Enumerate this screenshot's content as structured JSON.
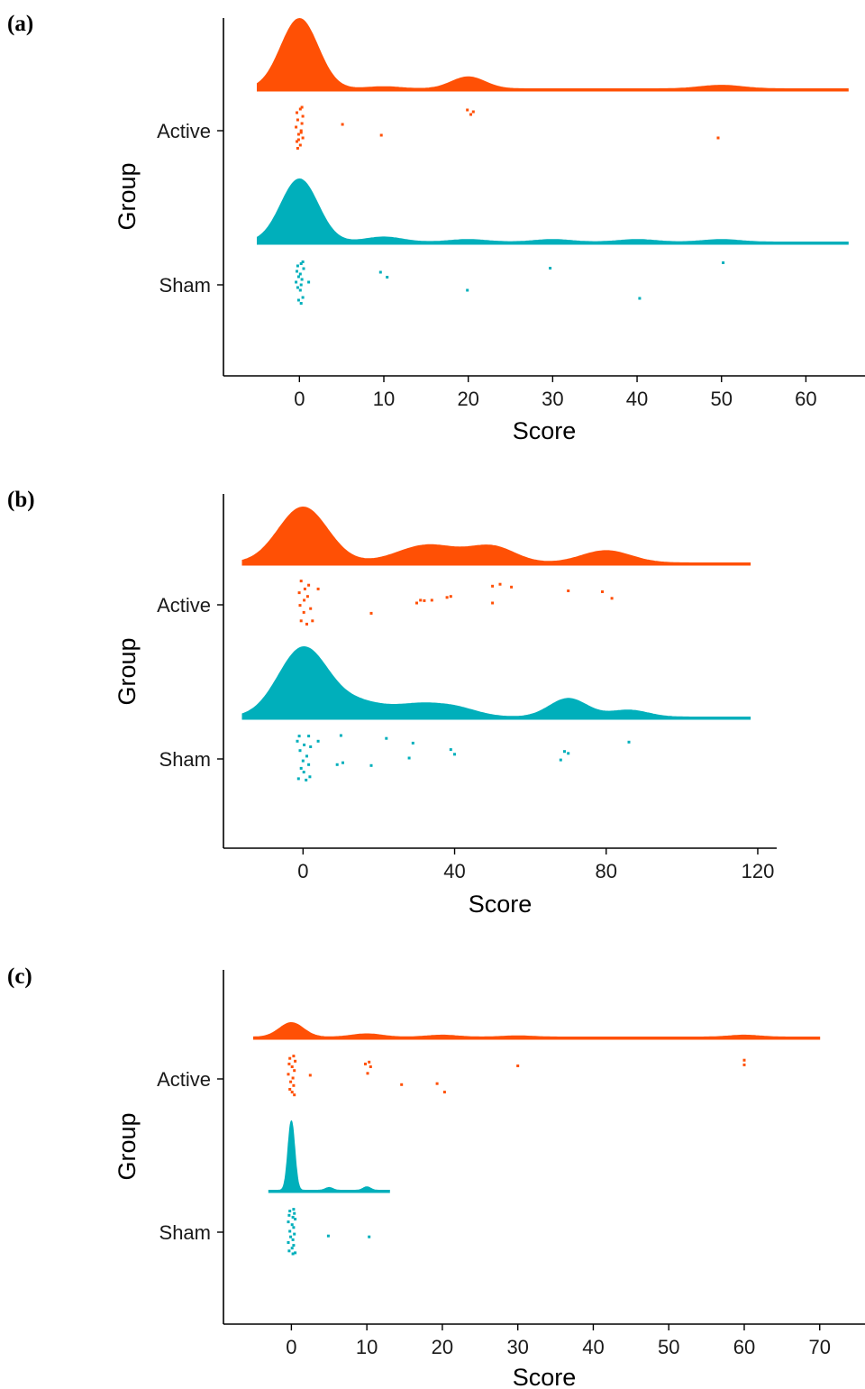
{
  "colors": {
    "Active": "#FF5005",
    "Sham": "#00AFBB"
  },
  "chart_data": [
    {
      "type": "raincloud",
      "panel_label": "(a)",
      "xlabel": "Score",
      "ylabel": "Group",
      "groups": [
        "Active",
        "Sham"
      ],
      "xlim": [
        -9,
        67
      ],
      "xticks": [
        0,
        10,
        20,
        30,
        40,
        50,
        60
      ],
      "density_range": [
        -5,
        65
      ],
      "series": [
        {
          "name": "Active",
          "density_peaks": [
            {
              "center": 0,
              "sd": 2.2,
              "height": 1.0
            },
            {
              "center": 10,
              "sd": 2.0,
              "height": 0.03
            },
            {
              "center": 20,
              "sd": 2.0,
              "height": 0.17
            },
            {
              "center": 50,
              "sd": 2.5,
              "height": 0.05
            }
          ],
          "points": [
            [
              0.1,
              0.92
            ],
            [
              -0.3,
              0.84
            ],
            [
              0.4,
              0.76
            ],
            [
              -0.2,
              0.68
            ],
            [
              0.3,
              0.6
            ],
            [
              -0.4,
              0.52
            ],
            [
              0.2,
              0.44
            ],
            [
              -0.1,
              0.36
            ],
            [
              0.4,
              0.28
            ],
            [
              -0.3,
              0.2
            ],
            [
              0.1,
              0.12
            ],
            [
              -0.2,
              0.05
            ],
            [
              0.3,
              0.96
            ],
            [
              -0.1,
              0.24
            ],
            [
              0.2,
              0.4
            ],
            [
              5.1,
              0.58
            ],
            [
              9.7,
              0.34
            ],
            [
              19.9,
              0.9
            ],
            [
              20.3,
              0.8
            ],
            [
              20.6,
              0.86
            ],
            [
              49.6,
              0.28
            ]
          ]
        },
        {
          "name": "Sham",
          "density_peaks": [
            {
              "center": 0,
              "sd": 2.2,
              "height": 1.0
            },
            {
              "center": 10,
              "sd": 2.2,
              "height": 0.08
            },
            {
              "center": 20,
              "sd": 2.2,
              "height": 0.04
            },
            {
              "center": 30,
              "sd": 2.2,
              "height": 0.04
            },
            {
              "center": 40,
              "sd": 2.2,
              "height": 0.04
            },
            {
              "center": 50,
              "sd": 2.2,
              "height": 0.04
            }
          ],
          "points": [
            [
              0.4,
              0.97
            ],
            [
              0.2,
              0.93
            ],
            [
              -0.2,
              0.88
            ],
            [
              0.5,
              0.82
            ],
            [
              -0.3,
              0.76
            ],
            [
              0.1,
              0.7
            ],
            [
              -0.1,
              0.64
            ],
            [
              0.3,
              0.58
            ],
            [
              -0.4,
              0.52
            ],
            [
              0.2,
              0.46
            ],
            [
              -0.2,
              0.4
            ],
            [
              0.1,
              0.34
            ],
            [
              0.4,
              0.18
            ],
            [
              -0.1,
              0.12
            ],
            [
              0.2,
              0.05
            ],
            [
              1.1,
              0.52
            ],
            [
              9.6,
              0.74
            ],
            [
              10.4,
              0.63
            ],
            [
              19.9,
              0.34
            ],
            [
              29.7,
              0.83
            ],
            [
              40.3,
              0.16
            ],
            [
              50.2,
              0.95
            ]
          ]
        }
      ]
    },
    {
      "type": "raincloud",
      "panel_label": "(b)",
      "xlabel": "Score",
      "ylabel": "Group",
      "groups": [
        "Active",
        "Sham"
      ],
      "xlim": [
        -21,
        125
      ],
      "xticks": [
        0,
        40,
        80,
        120
      ],
      "density_range": [
        -16,
        118
      ],
      "series": [
        {
          "name": "Active",
          "density_peaks": [
            {
              "center": 0,
              "sd": 6.5,
              "height": 1.0
            },
            {
              "center": 33,
              "sd": 8,
              "height": 0.32
            },
            {
              "center": 50,
              "sd": 6,
              "height": 0.28
            },
            {
              "center": 80,
              "sd": 6.5,
              "height": 0.22
            }
          ],
          "points": [
            [
              -0.5,
              0.97
            ],
            [
              1.5,
              0.88
            ],
            [
              0.5,
              0.8
            ],
            [
              -1,
              0.72
            ],
            [
              1.2,
              0.64
            ],
            [
              0.3,
              0.56
            ],
            [
              -0.8,
              0.45
            ],
            [
              2,
              0.38
            ],
            [
              0.2,
              0.3
            ],
            [
              -0.5,
              0.12
            ],
            [
              1,
              0.05
            ],
            [
              2.5,
              0.12
            ],
            [
              4,
              0.8
            ],
            [
              18,
              0.28
            ],
            [
              30,
              0.5
            ],
            [
              31,
              0.56
            ],
            [
              32,
              0.55
            ],
            [
              34,
              0.56
            ],
            [
              38,
              0.62
            ],
            [
              39,
              0.64
            ],
            [
              50,
              0.5
            ],
            [
              50,
              0.86
            ],
            [
              52,
              0.9
            ],
            [
              55,
              0.84
            ],
            [
              70,
              0.76
            ],
            [
              79,
              0.74
            ],
            [
              81.5,
              0.6
            ]
          ]
        },
        {
          "name": "Sham",
          "density_peaks": [
            {
              "center": 0,
              "sd": 6.5,
              "height": 1.0
            },
            {
              "center": 15,
              "sd": 7,
              "height": 0.2
            },
            {
              "center": 30,
              "sd": 6,
              "height": 0.15
            },
            {
              "center": 40,
              "sd": 6,
              "height": 0.13
            },
            {
              "center": 70,
              "sd": 5,
              "height": 0.27
            },
            {
              "center": 86,
              "sd": 5,
              "height": 0.1
            }
          ],
          "points": [
            [
              -1,
              0.97
            ],
            [
              1.5,
              0.97
            ],
            [
              -1.5,
              0.86
            ],
            [
              0.3,
              0.78
            ],
            [
              2,
              0.74
            ],
            [
              -0.8,
              0.66
            ],
            [
              1,
              0.54
            ],
            [
              0,
              0.44
            ],
            [
              1.5,
              0.36
            ],
            [
              -0.5,
              0.28
            ],
            [
              0.2,
              0.2
            ],
            [
              1.8,
              0.1
            ],
            [
              -1.2,
              0.06
            ],
            [
              0.8,
              0.03
            ],
            [
              4,
              0.86
            ],
            [
              9,
              0.36
            ],
            [
              10,
              0.98
            ],
            [
              10.5,
              0.4
            ],
            [
              18,
              0.34
            ],
            [
              22,
              0.92
            ],
            [
              28,
              0.5
            ],
            [
              29,
              0.82
            ],
            [
              39,
              0.68
            ],
            [
              40,
              0.58
            ],
            [
              68,
              0.46
            ],
            [
              69,
              0.64
            ],
            [
              70,
              0.6
            ],
            [
              86,
              0.84
            ]
          ]
        }
      ]
    },
    {
      "type": "raincloud",
      "panel_label": "(c)",
      "xlabel": "Score",
      "ylabel": "Group",
      "groups": [
        "Active",
        "Sham"
      ],
      "xlim": [
        -9,
        76
      ],
      "xticks": [
        0,
        10,
        20,
        30,
        40,
        50,
        60,
        70
      ],
      "series": [
        {
          "name": "Active",
          "density_range": [
            -5,
            70
          ],
          "density_peaks": [
            {
              "center": 0,
              "sd": 1.6,
              "height": 1.0
            },
            {
              "center": 10,
              "sd": 2,
              "height": 0.22
            },
            {
              "center": 20,
              "sd": 2,
              "height": 0.13
            },
            {
              "center": 30,
              "sd": 2,
              "height": 0.08
            },
            {
              "center": 60,
              "sd": 2,
              "height": 0.13
            }
          ],
          "points": [
            [
              0.3,
              0.97
            ],
            [
              -0.2,
              0.92
            ],
            [
              0.5,
              0.86
            ],
            [
              -0.3,
              0.8
            ],
            [
              0.1,
              0.74
            ],
            [
              0.4,
              0.66
            ],
            [
              -0.4,
              0.58
            ],
            [
              0.2,
              0.5
            ],
            [
              -0.1,
              0.42
            ],
            [
              0.3,
              0.34
            ],
            [
              -0.2,
              0.26
            ],
            [
              0.1,
              0.2
            ],
            [
              0.4,
              0.14
            ],
            [
              2.5,
              0.56
            ],
            [
              9.8,
              0.8
            ],
            [
              10.3,
              0.84
            ],
            [
              10.5,
              0.74
            ],
            [
              10.1,
              0.6
            ],
            [
              14.6,
              0.36
            ],
            [
              19.3,
              0.38
            ],
            [
              20.3,
              0.2
            ],
            [
              30,
              0.76
            ],
            [
              60,
              0.88
            ],
            [
              60,
              0.78
            ]
          ]
        },
        {
          "name": "Sham",
          "density_range": [
            -3,
            13
          ],
          "density_peaks": [
            {
              "center": 0,
              "sd": 0.45,
              "height": 1.0
            },
            {
              "center": 5,
              "sd": 0.5,
              "height": 0.04
            },
            {
              "center": 10,
              "sd": 0.5,
              "height": 0.05
            }
          ],
          "points": [
            [
              0.3,
              0.97
            ],
            [
              -0.2,
              0.93
            ],
            [
              0.4,
              0.88
            ],
            [
              -0.3,
              0.84
            ],
            [
              0.2,
              0.8
            ],
            [
              0.5,
              0.76
            ],
            [
              -0.4,
              0.7
            ],
            [
              0.1,
              0.64
            ],
            [
              0.3,
              0.58
            ],
            [
              -0.2,
              0.5
            ],
            [
              0.4,
              0.44
            ],
            [
              -0.1,
              0.38
            ],
            [
              0.2,
              0.32
            ],
            [
              -0.4,
              0.26
            ],
            [
              0.3,
              0.2
            ],
            [
              0.1,
              0.14
            ],
            [
              -0.3,
              0.08
            ],
            [
              0.5,
              0.04
            ],
            [
              0.2,
              0.02
            ],
            [
              4.9,
              0.4
            ],
            [
              10.3,
              0.38
            ]
          ]
        }
      ]
    }
  ]
}
